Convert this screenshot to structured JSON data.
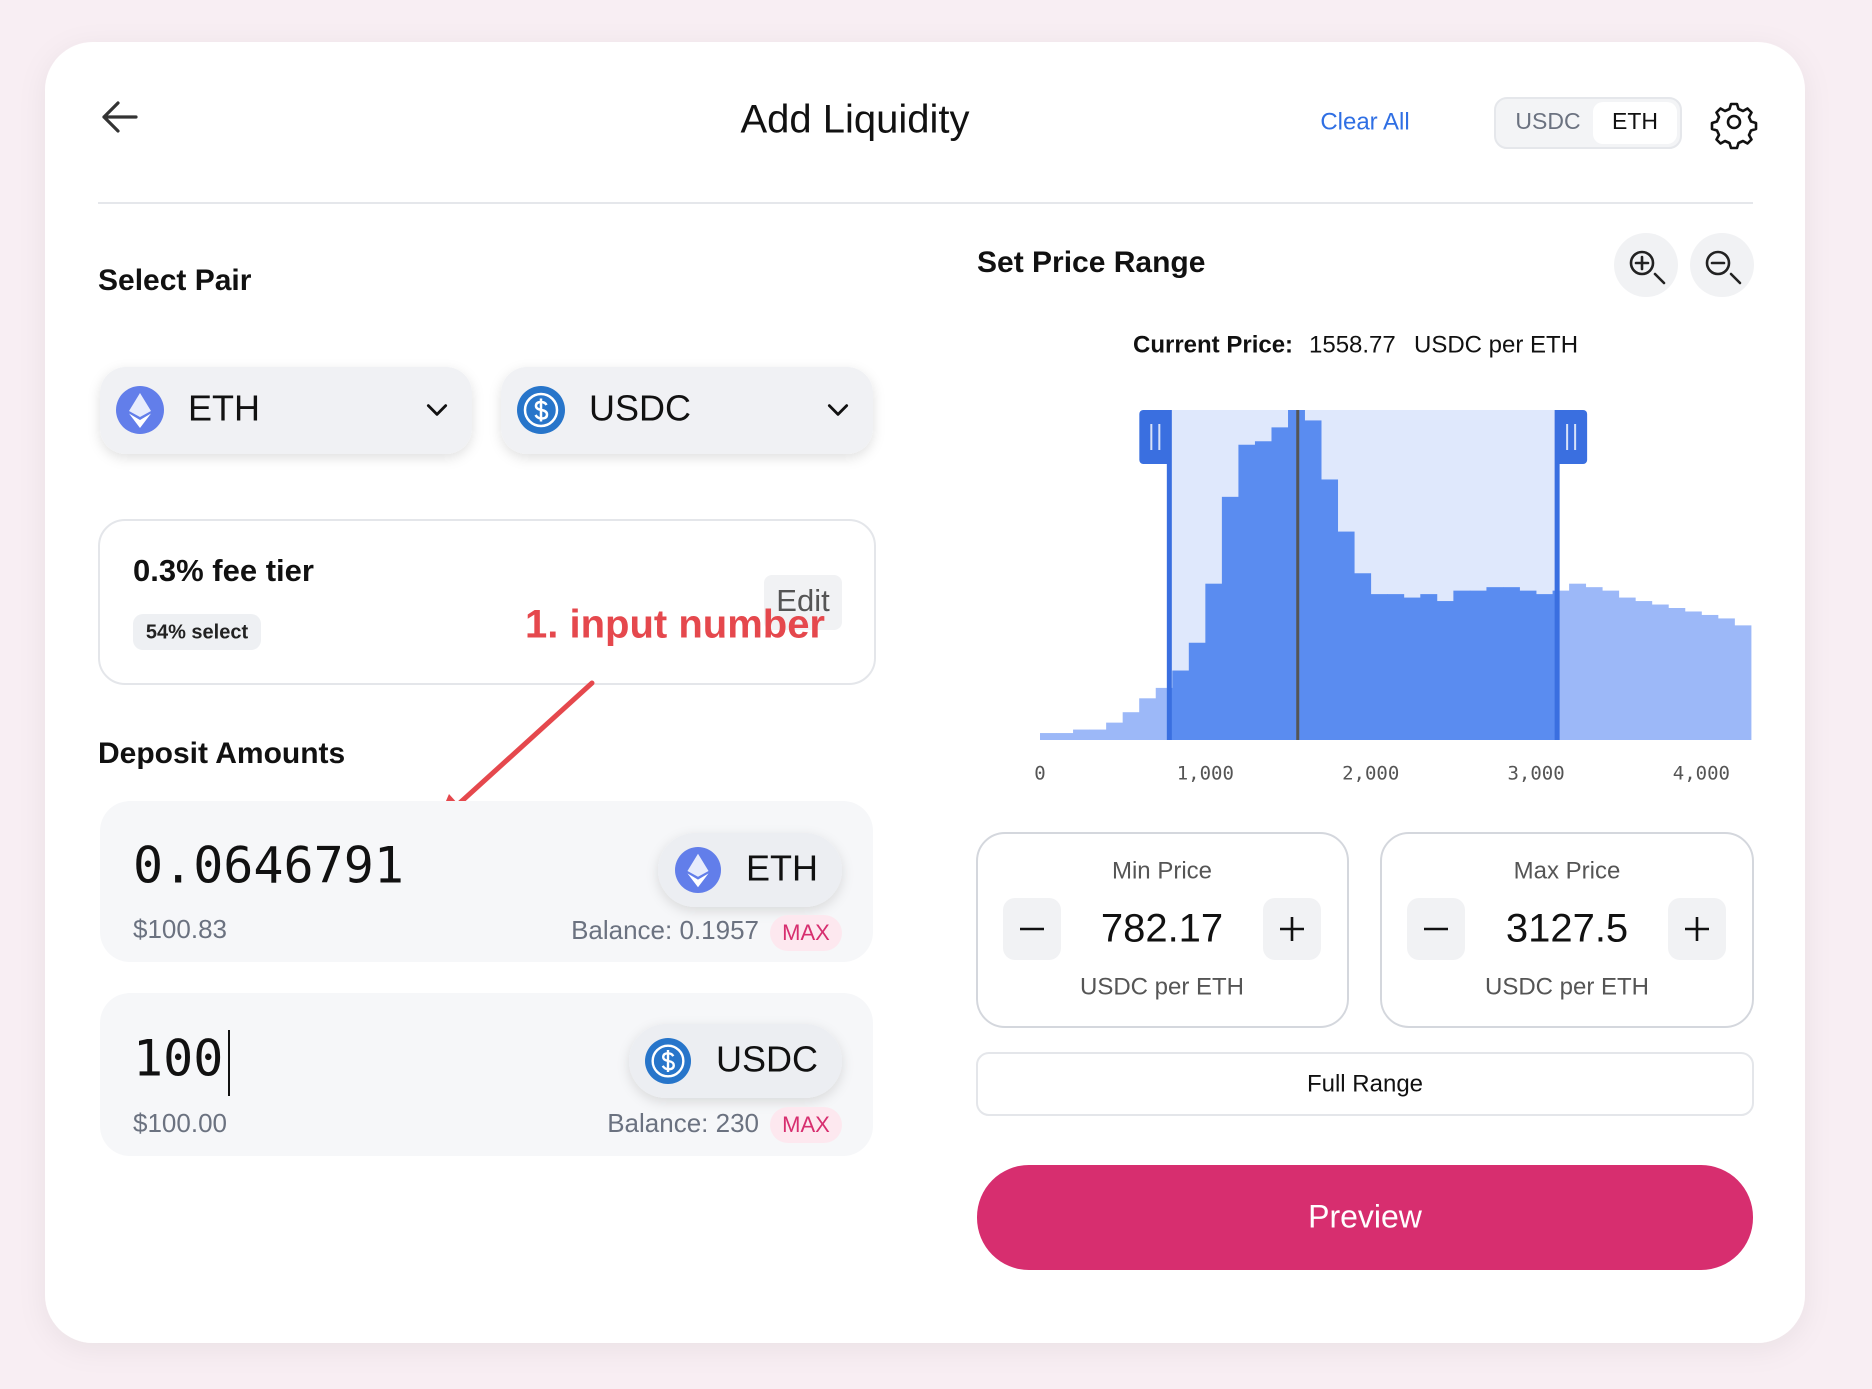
{
  "header": {
    "title": "Add Liquidity",
    "clear_all": "Clear All",
    "toggle": [
      "USDC",
      "ETH"
    ]
  },
  "select_pair": {
    "title": "Select Pair",
    "tokens": [
      "ETH",
      "USDC"
    ]
  },
  "fee": {
    "tier": "0.3% fee tier",
    "select": "54% select",
    "edit": "Edit"
  },
  "annotation": "1. input number",
  "deposit": {
    "title": "Deposit Amounts",
    "items": [
      {
        "amount": "0.0646791",
        "usd": "$100.83",
        "token": "ETH",
        "balance": "Balance: 0.1957",
        "max": "MAX"
      },
      {
        "amount": "100",
        "usd": "$100.00",
        "token": "USDC",
        "balance": "Balance: 230",
        "max": "MAX"
      }
    ]
  },
  "price_range": {
    "title": "Set Price Range",
    "current_label": "Current Price:",
    "current_price": 1558.77,
    "current_unit": "USDC per ETH",
    "min": {
      "label": "Min Price",
      "value": 782.17,
      "unit": "USDC per ETH"
    },
    "max": {
      "label": "Max Price",
      "value": 3127.5,
      "unit": "USDC per ETH"
    },
    "full_range": "Full Range"
  },
  "chart_data": {
    "type": "histogram",
    "bins": [
      0,
      100,
      200,
      300,
      400,
      500,
      600,
      700,
      800,
      900,
      1000,
      1100,
      1200,
      1300,
      1400,
      1500,
      1600,
      1700,
      1800,
      1900,
      2000,
      2100,
      2200,
      2300,
      2400,
      2500,
      2600,
      2700,
      2800,
      2900,
      3000,
      3100,
      3200,
      3300,
      3400,
      3500,
      3600,
      3700,
      3800,
      3900,
      4000,
      4100,
      4200,
      4300
    ],
    "values": [
      2,
      2,
      3,
      3,
      5,
      8,
      12,
      15,
      20,
      28,
      45,
      70,
      85,
      86,
      90,
      95,
      92,
      75,
      60,
      48,
      42,
      42,
      41,
      42,
      40,
      43,
      43,
      44,
      44,
      43,
      42,
      43,
      45,
      44,
      43,
      41,
      40,
      39,
      38,
      37,
      36,
      35,
      33
    ],
    "xlim": [
      0,
      4300
    ],
    "xticks": [
      0,
      {
        "value": 1000,
        "label": "1,000"
      },
      {
        "value": 2000,
        "label": "2,000"
      },
      {
        "value": 3000,
        "label": "3,000"
      },
      {
        "value": 4000,
        "label": "4,000"
      }
    ],
    "color": "#5a8cf0",
    "out_of_range_color": "#9cb8f8",
    "range_color": "#dfe8fc"
  },
  "preview": "Preview"
}
